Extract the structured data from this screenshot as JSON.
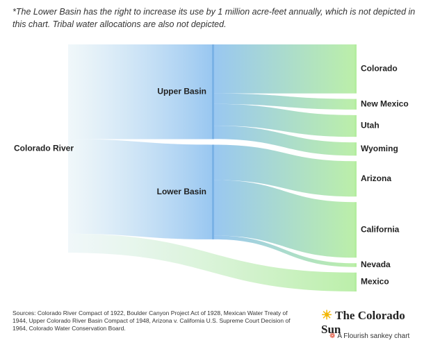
{
  "chart_data": {
    "type": "sankey",
    "note": "*The Lower Basin has the right to increase its use by 1 million acre-feet annually, which is not depicted in this chart. Tribal water allocations are also not depicted.",
    "nodes": [
      {
        "label": "Colorado River",
        "color": "#e6f2f6"
      },
      {
        "label": "Upper Basin",
        "color": "#8ec1ef"
      },
      {
        "label": "Lower Basin",
        "color": "#8ec1ef"
      },
      {
        "label": "Colorado",
        "color": "#b4eda0"
      },
      {
        "label": "New Mexico",
        "color": "#b4eda0"
      },
      {
        "label": "Utah",
        "color": "#b4eda0"
      },
      {
        "label": "Wyoming",
        "color": "#b4eda0"
      },
      {
        "label": "Arizona",
        "color": "#b4eda0"
      },
      {
        "label": "California",
        "color": "#b4eda0"
      },
      {
        "label": "Nevada",
        "color": "#b4eda0"
      },
      {
        "label": "Mexico",
        "color": "#b4eda0"
      }
    ],
    "links": [
      {
        "source": 0,
        "target": 1,
        "value": 7.5
      },
      {
        "source": 0,
        "target": 2,
        "value": 7.5
      },
      {
        "source": 0,
        "target": 10,
        "value": 1.5
      },
      {
        "source": 1,
        "target": 3,
        "value": 3.88
      },
      {
        "source": 1,
        "target": 4,
        "value": 0.84
      },
      {
        "source": 1,
        "target": 5,
        "value": 1.72
      },
      {
        "source": 1,
        "target": 6,
        "value": 1.05
      },
      {
        "source": 2,
        "target": 7,
        "value": 2.8
      },
      {
        "source": 2,
        "target": 8,
        "value": 4.4
      },
      {
        "source": 2,
        "target": 9,
        "value": 0.3
      }
    ],
    "source_text": "Sources: Colorado River Compact of 1922, Boulder Canyon Project Act of 1928, Mexican Water Treaty of 1944, Upper Colorado River Basin Compact of 1948, Arizona v. California U.S. Supreme Court Decision of 1964, Colorado Water Conservation Board.",
    "brand": "The Colorado Sun",
    "credit": "A Flourish sankey chart"
  }
}
